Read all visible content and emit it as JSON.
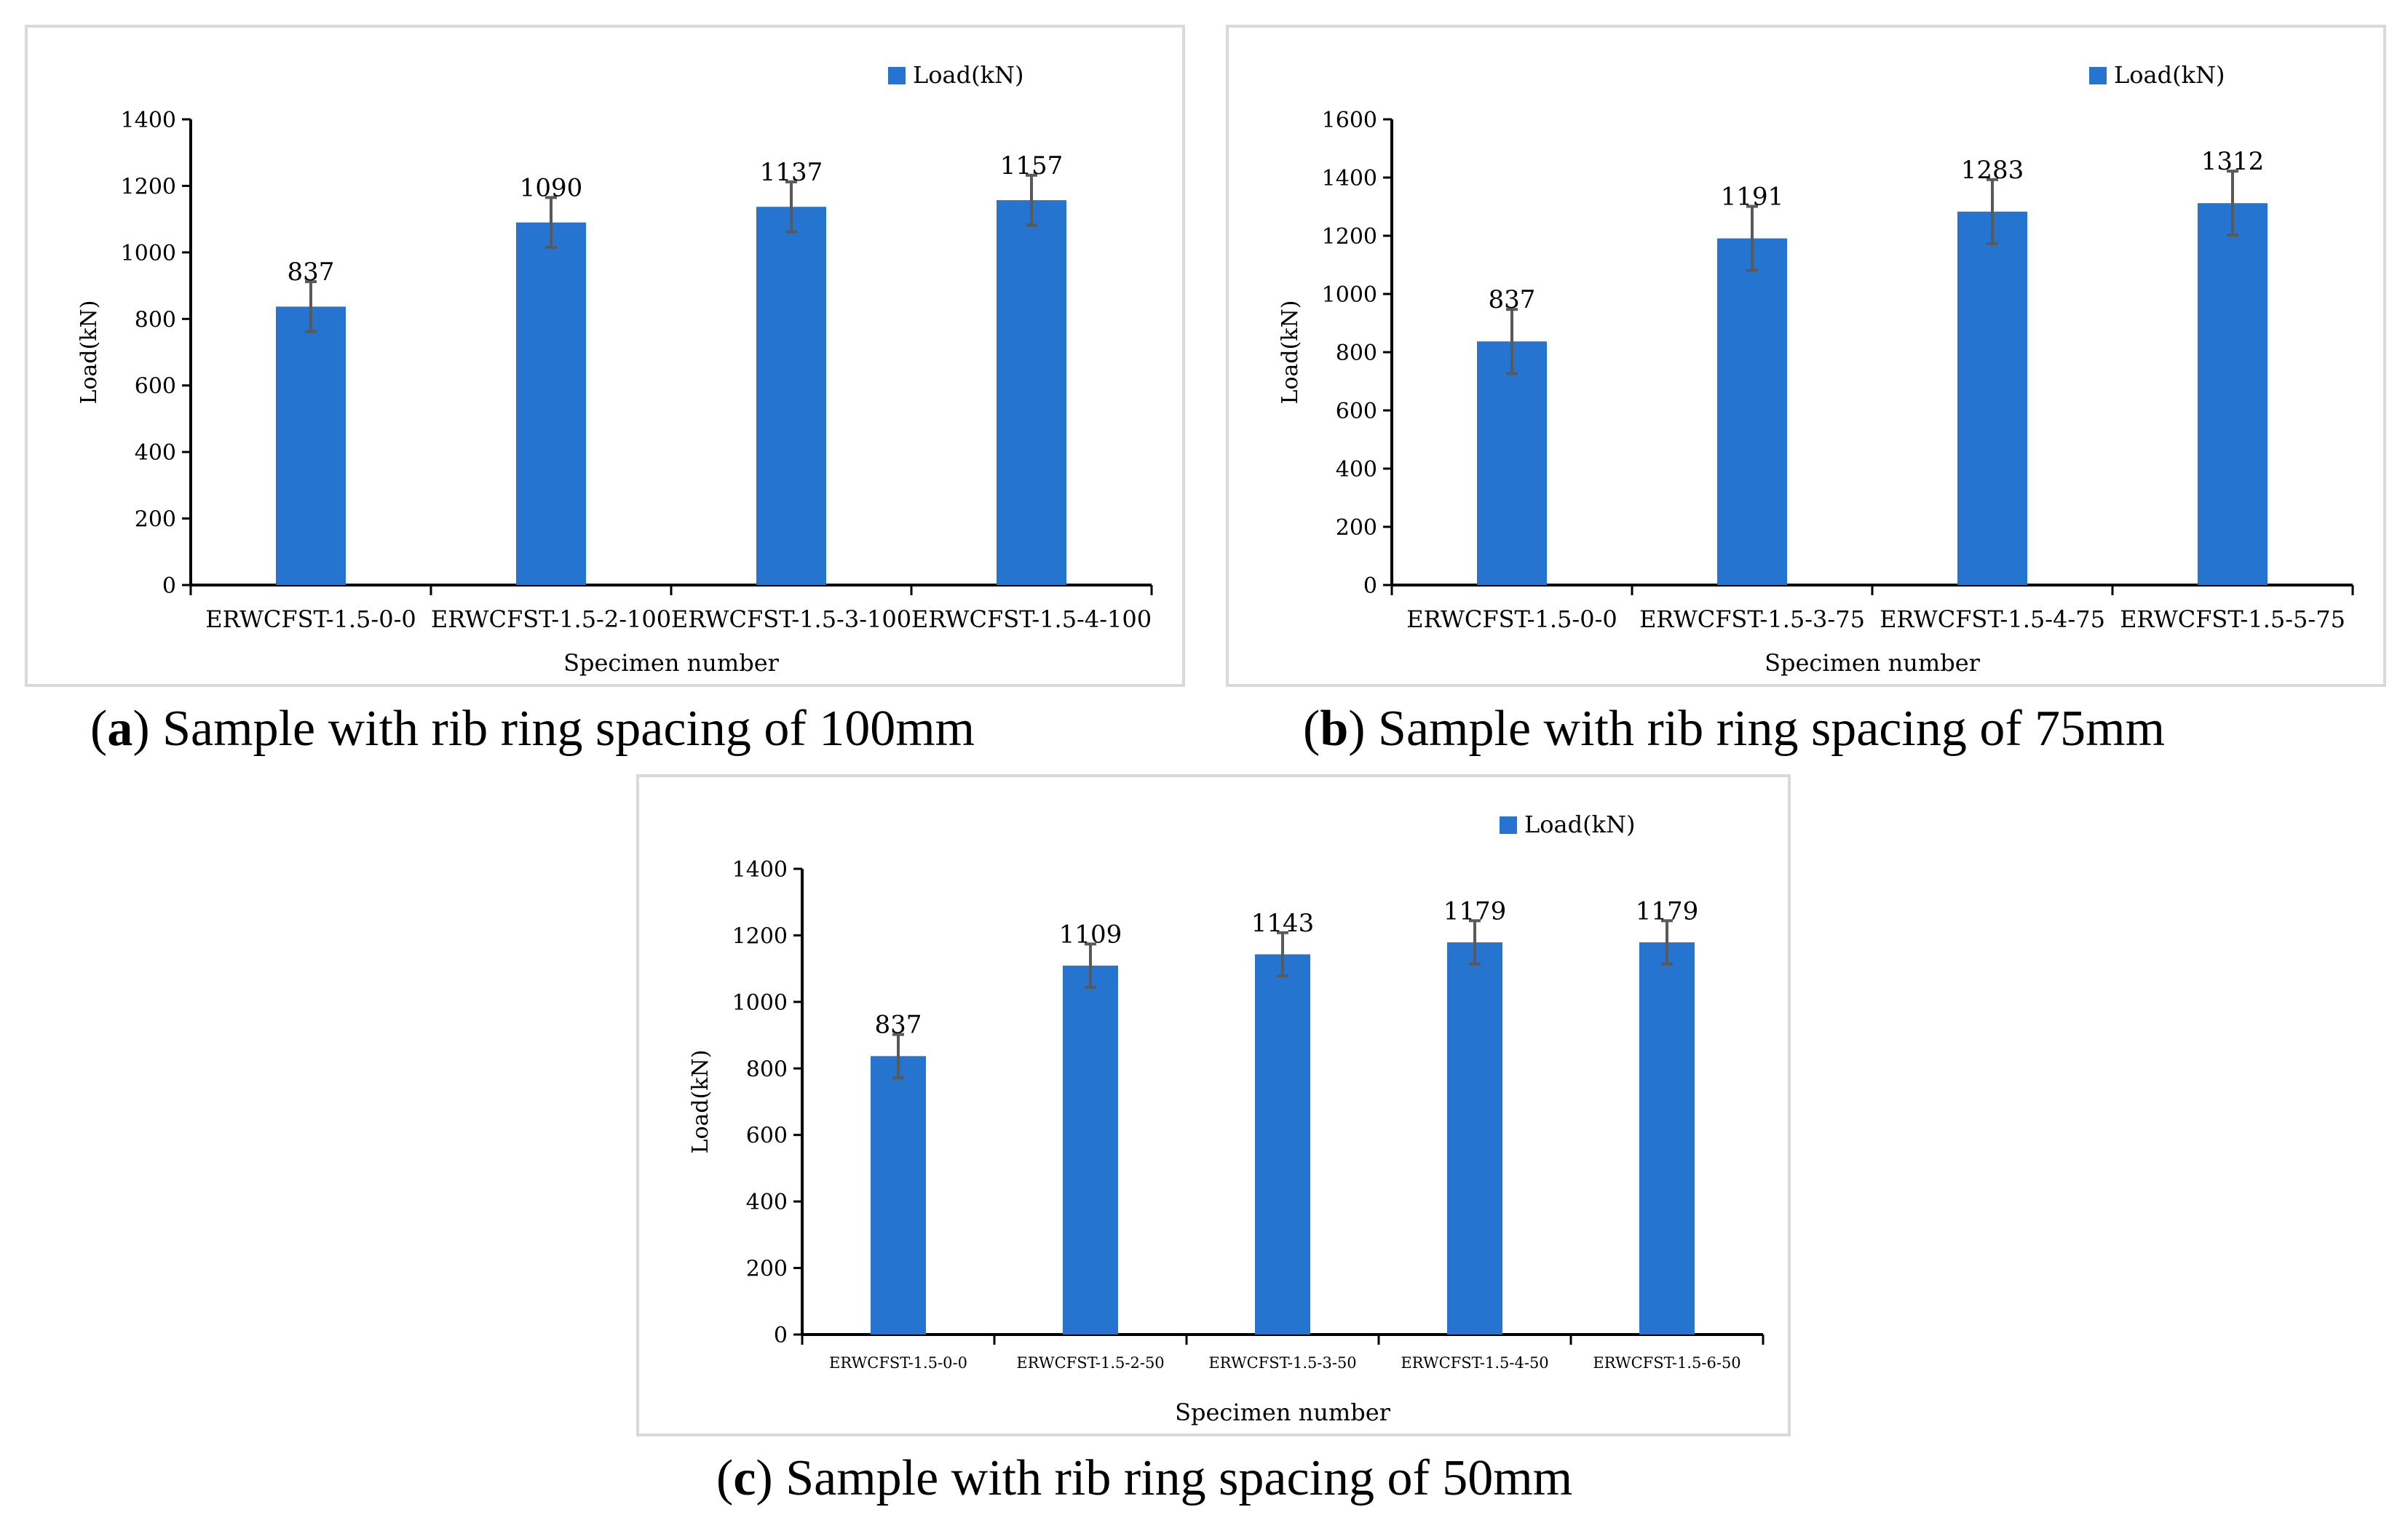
{
  "figure": {
    "captions": [
      {
        "letter": "a",
        "text": ") Sample with rib ring spacing of 100mm",
        "open": "("
      },
      {
        "letter": "b",
        "text": ") Sample with rib ring spacing of 75mm",
        "open": "("
      },
      {
        "letter": "c",
        "text": ") Sample with rib ring spacing of 50mm",
        "open": "("
      }
    ]
  },
  "colors": {
    "bar": "#2474d0",
    "error": "#595959",
    "axis": "#000000",
    "border": "#d9d9d9"
  },
  "chart_data": [
    {
      "type": "bar",
      "title": "",
      "legend": "Load(kN)",
      "legend_position": "top-right",
      "xlabel": "Specimen number",
      "ylabel": "Load(kN)",
      "ylim": [
        0,
        1400
      ],
      "ytick_step": 200,
      "yticks": [
        "0",
        "200",
        "400",
        "600",
        "800",
        "1000",
        "1200",
        "1400"
      ],
      "categories": [
        "ERWCFST-1.5-0-0",
        "ERWCFST-1.5-2-100",
        "ERWCFST-1.5-3-100",
        "ERWCFST-1.5-4-100"
      ],
      "values": [
        837,
        1090,
        1137,
        1157
      ],
      "data_labels": [
        "837",
        "1090",
        "1137",
        "1157"
      ],
      "error": [
        75,
        75,
        75,
        75
      ],
      "grid": false
    },
    {
      "type": "bar",
      "title": "",
      "legend": "Load(kN)",
      "legend_position": "top-right",
      "xlabel": "Specimen number",
      "ylabel": "Load(kN)",
      "ylim": [
        0,
        1600
      ],
      "ytick_step": 200,
      "yticks": [
        "0",
        "200",
        "400",
        "600",
        "800",
        "1000",
        "1200",
        "1400",
        "1600"
      ],
      "categories": [
        "ERWCFST-1.5-0-0",
        "ERWCFST-1.5-3-75",
        "ERWCFST-1.5-4-75",
        "ERWCFST-1.5-5-75"
      ],
      "values": [
        837,
        1191,
        1283,
        1312
      ],
      "data_labels": [
        "837",
        "1191",
        "1283",
        "1312"
      ],
      "error": [
        110,
        110,
        110,
        110
      ],
      "grid": false
    },
    {
      "type": "bar",
      "title": "",
      "legend": "Load(kN)",
      "legend_position": "top-right",
      "xlabel": "Specimen number",
      "ylabel": "Load(kN)",
      "ylim": [
        0,
        1400
      ],
      "ytick_step": 200,
      "yticks": [
        "0",
        "200",
        "400",
        "600",
        "800",
        "1000",
        "1200",
        "1400"
      ],
      "categories": [
        "ERWCFST-1.5-0-0",
        "ERWCFST-1.5-2-50",
        "ERWCFST-1.5-3-50",
        "ERWCFST-1.5-4-50",
        "ERWCFST-1.5-6-50"
      ],
      "values": [
        837,
        1109,
        1143,
        1179,
        1179
      ],
      "data_labels": [
        "837",
        "1109",
        "1143",
        "1179",
        "1179"
      ],
      "error": [
        65,
        65,
        65,
        65,
        65
      ],
      "grid": false
    }
  ]
}
